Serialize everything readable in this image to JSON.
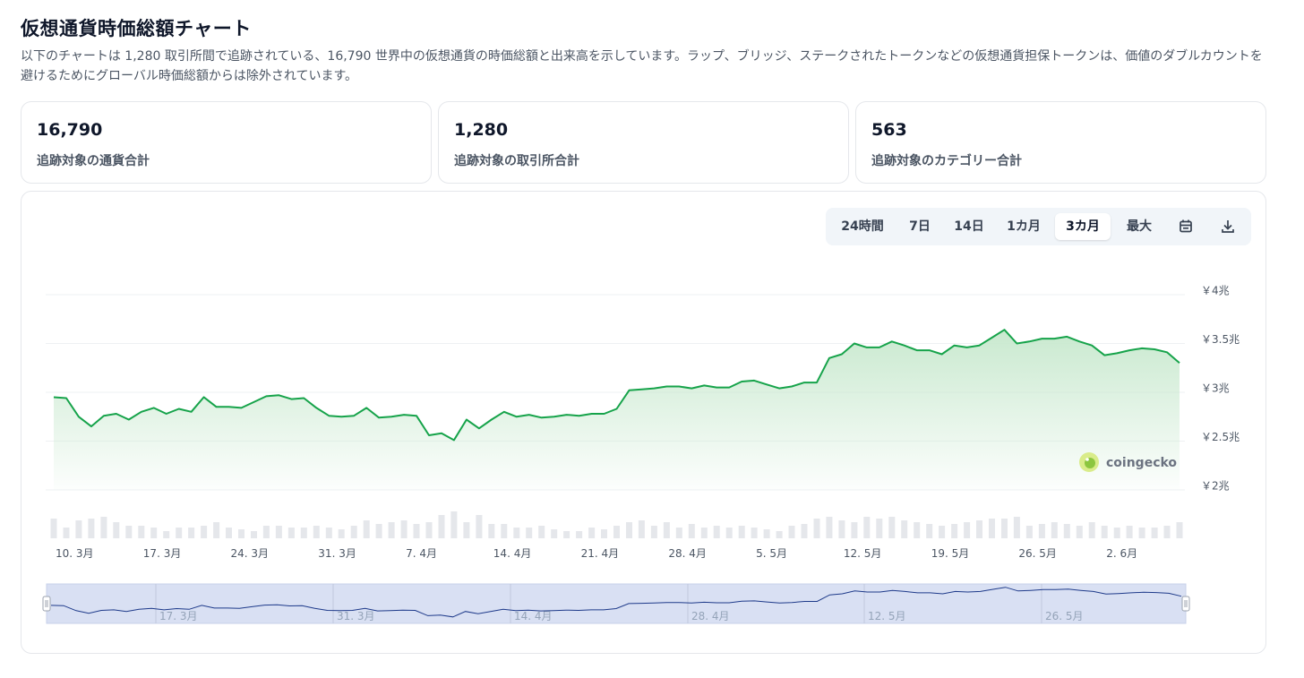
{
  "page": {
    "title": "仮想通貨時価総額チャート",
    "description": "以下のチャートは 1,280 取引所間で追跡されている、16,790 世界中の仮想通貨の時価総額と出来高を示しています。ラップ、ブリッジ、ステークされたトークンなどの仮想通貨担保トークンは、価値のダブルカウントを避けるためにグローバル時価総額からは除外されています。"
  },
  "stats": [
    {
      "value": "16,790",
      "label": "追跡対象の通貨合計"
    },
    {
      "value": "1,280",
      "label": "追跡対象の取引所合計"
    },
    {
      "value": "563",
      "label": "追跡対象のカテゴリー合計"
    }
  ],
  "range_selector": {
    "options": [
      "24時間",
      "7日",
      "14日",
      "1カ月",
      "3カ月",
      "最大"
    ],
    "selected": "3カ月",
    "icons": [
      "calendar-icon",
      "download-icon"
    ]
  },
  "watermark": "coingecko",
  "colors": {
    "line": "#16a34a",
    "area_top": "#c9e9cf",
    "volume_bar": "#e5e7eb",
    "navigator_fill": "#d9e0f3",
    "navigator_line": "#1e3a8a"
  },
  "chart_data": {
    "type": "area",
    "ylim": [
      2,
      4
    ],
    "ytick_labels": [
      "￥2兆",
      "￥2.5兆",
      "￥3兆",
      "￥3.5兆",
      "￥4兆"
    ],
    "xtick_labels": [
      "10. 3月",
      "17. 3月",
      "24. 3月",
      "31. 3月",
      "7. 4月",
      "14. 4月",
      "21. 4月",
      "28. 4月",
      "5. 5月",
      "12. 5月",
      "19. 5月",
      "26. 5月",
      "2. 6月"
    ],
    "series": [
      {
        "values": [
          2.95,
          2.94,
          2.75,
          2.65,
          2.76,
          2.78,
          2.72,
          2.8,
          2.84,
          2.78,
          2.83,
          2.8,
          2.95,
          2.85,
          2.85,
          2.84,
          2.9,
          2.96,
          2.97,
          2.93,
          2.94,
          2.84,
          2.76,
          2.75,
          2.76,
          2.84,
          2.74,
          2.75,
          2.77,
          2.76,
          2.56,
          2.58,
          2.51,
          2.72,
          2.63,
          2.72,
          2.8,
          2.75,
          2.77,
          2.74,
          2.75,
          2.77,
          2.76,
          2.78,
          2.78,
          2.83,
          3.02,
          3.03,
          3.04,
          3.06,
          3.06,
          3.04,
          3.07,
          3.05,
          3.05,
          3.11,
          3.12,
          3.08,
          3.04,
          3.06,
          3.1,
          3.1,
          3.35,
          3.39,
          3.5,
          3.46,
          3.46,
          3.52,
          3.48,
          3.43,
          3.43,
          3.39,
          3.48,
          3.46,
          3.48,
          3.56,
          3.64,
          3.5,
          3.52,
          3.55,
          3.55,
          3.57,
          3.52,
          3.48,
          3.38,
          3.4,
          3.43,
          3.45,
          3.44,
          3.41,
          3.3
        ]
      }
    ],
    "volume_relative": [
      0.55,
      0.3,
      0.5,
      0.55,
      0.6,
      0.45,
      0.35,
      0.35,
      0.3,
      0.2,
      0.3,
      0.3,
      0.35,
      0.45,
      0.3,
      0.25,
      0.2,
      0.35,
      0.35,
      0.3,
      0.3,
      0.35,
      0.3,
      0.25,
      0.35,
      0.5,
      0.4,
      0.45,
      0.5,
      0.4,
      0.45,
      0.65,
      0.75,
      0.45,
      0.65,
      0.4,
      0.4,
      0.3,
      0.3,
      0.35,
      0.25,
      0.2,
      0.2,
      0.3,
      0.25,
      0.35,
      0.45,
      0.5,
      0.35,
      0.45,
      0.3,
      0.4,
      0.3,
      0.35,
      0.3,
      0.35,
      0.3,
      0.25,
      0.2,
      0.35,
      0.4,
      0.55,
      0.6,
      0.5,
      0.45,
      0.6,
      0.55,
      0.6,
      0.5,
      0.45,
      0.4,
      0.35,
      0.4,
      0.45,
      0.5,
      0.55,
      0.55,
      0.6,
      0.35,
      0.4,
      0.45,
      0.4,
      0.35,
      0.45,
      0.35,
      0.3,
      0.35,
      0.3,
      0.3,
      0.35,
      0.45
    ],
    "navigator_labels": [
      "17. 3月",
      "31. 3月",
      "14. 4月",
      "28. 4月",
      "12. 5月",
      "26. 5月"
    ],
    "grid": true
  }
}
